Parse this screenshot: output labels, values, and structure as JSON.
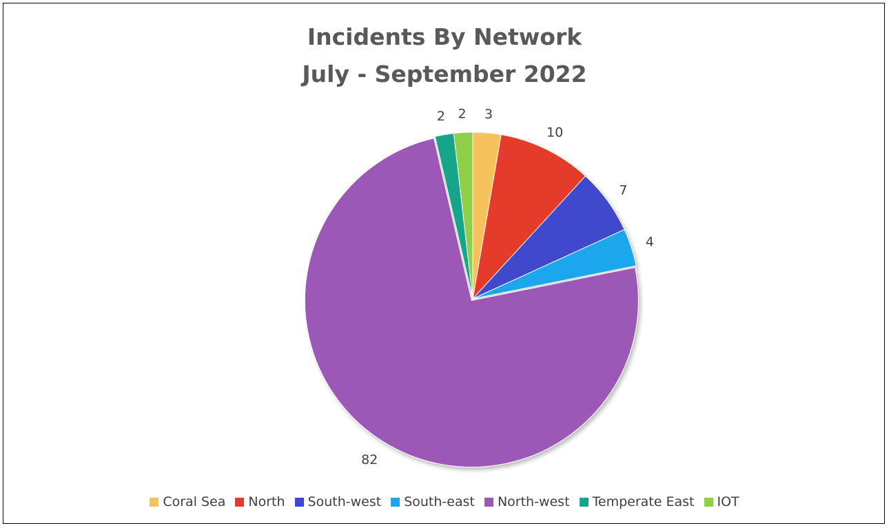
{
  "chart_data": {
    "type": "pie",
    "title": "Incidents By Network",
    "subtitle": "July - September 2022",
    "categories": [
      "Coral Sea",
      "North",
      "South-west",
      "South-east",
      "North-west",
      "Temperate East",
      "IOT"
    ],
    "values": [
      3,
      10,
      7,
      4,
      82,
      2,
      2
    ],
    "colors": [
      "#F6C25B",
      "#E53A2C",
      "#3F48CC",
      "#1AA7EC",
      "#9B59B6",
      "#17A589",
      "#8FCF4A"
    ],
    "data_labels": true,
    "legend_position": "bottom"
  }
}
